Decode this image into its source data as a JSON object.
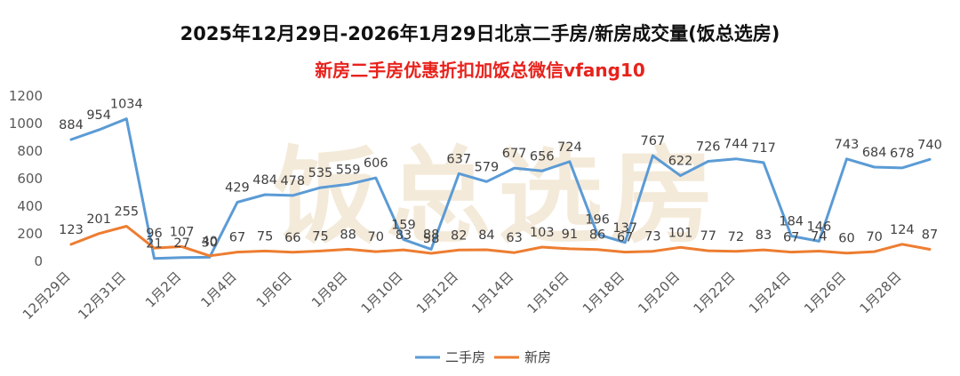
{
  "title": "2025年12月29日-2026年1月29日北京二手房/新房成交量(饭总选房)",
  "subtitle": "新房二手房优惠折扣加饭总微信vfang10",
  "watermark": "饭总选房",
  "colors": {
    "series1": "#5b9bd5",
    "series2": "#ed7d31",
    "subtitle": "#e8221c"
  },
  "chart_data": {
    "type": "line",
    "title": "2025年12月29日-2026年1月29日北京二手房/新房成交量(饭总选房)",
    "subtitle": "新房二手房优惠折扣加饭总微信vfang10",
    "ylim": [
      0,
      1200
    ],
    "yticks": [
      0,
      200,
      400,
      600,
      800,
      1000,
      1200
    ],
    "grid": false,
    "legend": "bottom",
    "categories": [
      "12月29日",
      "12月30日",
      "12月31日",
      "1月1日",
      "1月2日",
      "1月3日",
      "1月4日",
      "1月5日",
      "1月6日",
      "1月7日",
      "1月8日",
      "1月9日",
      "1月10日",
      "1月11日",
      "1月12日",
      "1月13日",
      "1月14日",
      "1月15日",
      "1月16日",
      "1月17日",
      "1月18日",
      "1月19日",
      "1月20日",
      "1月21日",
      "1月22日",
      "1月23日",
      "1月24日",
      "1月25日",
      "1月26日",
      "1月27日",
      "1月28日",
      "1月29日"
    ],
    "xtick_labels": [
      "12月29日",
      "12月31日",
      "1月2日",
      "1月4日",
      "1月6日",
      "1月8日",
      "1月10日",
      "1月12日",
      "1月14日",
      "1月16日",
      "1月18日",
      "1月20日",
      "1月22日",
      "1月24日",
      "1月26日",
      "1月28日"
    ],
    "series": [
      {
        "name": "二手房",
        "values": [
          884,
          954,
          1034,
          21,
          27,
          30,
          429,
          484,
          478,
          535,
          559,
          606,
          159,
          88,
          637,
          579,
          677,
          656,
          724,
          196,
          137,
          767,
          622,
          726,
          744,
          717,
          184,
          146,
          743,
          684,
          678,
          740
        ]
      },
      {
        "name": "新房",
        "values": [
          123,
          201,
          255,
          96,
          107,
          40,
          67,
          75,
          66,
          75,
          88,
          70,
          83,
          58,
          82,
          84,
          63,
          103,
          91,
          86,
          67,
          73,
          101,
          77,
          72,
          83,
          67,
          74,
          60,
          70,
          124,
          87
        ]
      }
    ]
  }
}
